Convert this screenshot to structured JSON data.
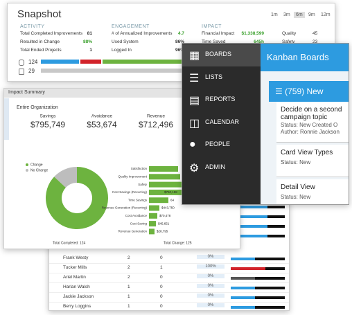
{
  "snapshot": {
    "title": "Snapshot",
    "periods": [
      "1m",
      "3m",
      "6m",
      "9m",
      "12m"
    ],
    "activity": {
      "heading": "ACTIVITY",
      "rows": [
        [
          "Total Completed Improvements",
          "81"
        ],
        [
          "Resulted in Change",
          "88%"
        ],
        [
          "Total Ended Projects",
          "1"
        ]
      ]
    },
    "engagement": {
      "heading": "ENGAGEMENT",
      "rows": [
        [
          "# of Annualized Improvements",
          "4.7"
        ],
        [
          "Used System",
          "86%"
        ],
        [
          "Logged In",
          "96%"
        ]
      ]
    },
    "impact": {
      "heading": "IMPACT",
      "rows": [
        [
          "Financial Impact",
          "$1,338,599"
        ],
        [
          "Time Saved",
          "645h"
        ]
      ],
      "side_rows": [
        [
          "Quality",
          "45"
        ],
        [
          "Safety",
          "23"
        ]
      ]
    },
    "counts": [
      "124",
      "29"
    ]
  },
  "impact_summary": {
    "title": "Impact Summary",
    "scope": "Entire Organization",
    "stats": [
      {
        "label": "Savings",
        "value": "$795,749"
      },
      {
        "label": "Avoidance",
        "value": "$53,674"
      },
      {
        "label": "Revenue",
        "value": "$712,496"
      }
    ],
    "chart_data": [
      {
        "type": "pie",
        "categories": [
          "Change",
          "No Change"
        ],
        "values": [
          87,
          13
        ],
        "colors": [
          "#6db33f",
          "#bdbdbd"
        ]
      },
      {
        "type": "bar",
        "orientation": "horizontal",
        "categories": [
          "Satisfaction",
          "Quality Improvement",
          "Safety",
          "Cost Savings (Recurring)",
          "Time Savings",
          "Revenue Generation (Recurring)",
          "Cost Avoidance",
          "Cost Saving",
          "Revenue Generation"
        ],
        "values": [
          42,
          45,
          48,
          60,
          28,
          15,
          12,
          10,
          8
        ],
        "color": "#6db33f",
        "xlim": [
          0,
          100
        ],
        "annotations": [
          "$750,158",
          "64",
          "$443,750",
          "$70,478",
          "$45,651",
          "$28,795"
        ]
      }
    ],
    "footer": [
      "Total Completed: 124",
      "Total Change: 125"
    ]
  },
  "table": {
    "rows": [
      [
        "Frank Westy",
        "2",
        "0",
        "0%"
      ],
      [
        "Tucker Mills",
        "2",
        "1",
        "100%"
      ],
      [
        "Ariel Martin",
        "2",
        "0",
        "0%"
      ],
      [
        "Harlan Walsh",
        "1",
        "0",
        "0%"
      ],
      [
        "Jackie Jackson",
        "1",
        "0",
        "0%"
      ],
      [
        "Berry Loggins",
        "1",
        "0",
        "0%"
      ]
    ]
  },
  "kanban": {
    "menu": [
      "BOARDS",
      "LISTS",
      "REPORTS",
      "CALENDAR",
      "PEOPLE",
      "ADMIN"
    ],
    "header": "Kanban Boards",
    "column": "(759) New",
    "cards": [
      {
        "title": "Decide on a second campaign topic",
        "lines": [
          "Status: New    Created O",
          "Author: Ronnie Jackson"
        ]
      },
      {
        "title": "Card View Types",
        "lines": [
          "Status: New"
        ]
      },
      {
        "title": "Detail View",
        "lines": [
          "Status: New"
        ]
      }
    ]
  }
}
